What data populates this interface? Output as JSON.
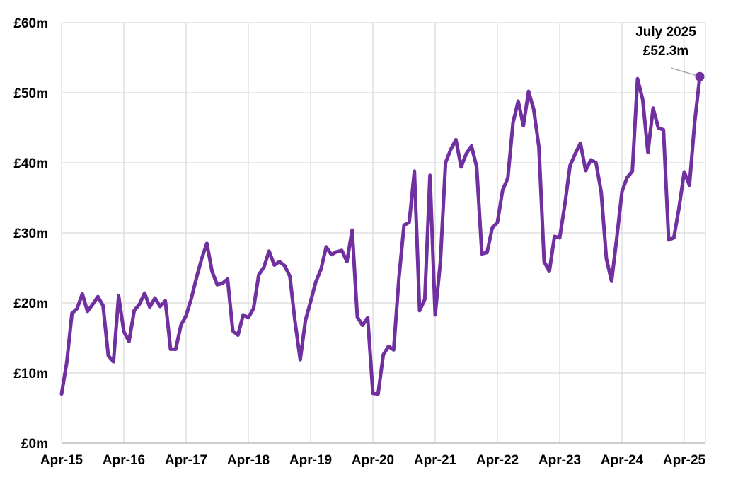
{
  "chart_data": {
    "type": "line",
    "title": "",
    "xlabel": "",
    "ylabel": "",
    "ylim": [
      0,
      60
    ],
    "y_ticks": [
      0,
      10,
      20,
      30,
      40,
      50,
      60
    ],
    "y_tick_labels": [
      "£0m",
      "£10m",
      "£20m",
      "£30m",
      "£40m",
      "£50m",
      "£60m"
    ],
    "x_tick_labels": [
      "Apr-15",
      "Apr-16",
      "Apr-17",
      "Apr-18",
      "Apr-19",
      "Apr-20",
      "Apr-21",
      "Apr-22",
      "Apr-23",
      "Apr-24",
      "Apr-25"
    ],
    "grid": true,
    "line_color": "#7030A0",
    "annotation": {
      "line1": "July 2025",
      "line2": "£52.3m",
      "month": "Jul-25",
      "value": 52.3
    },
    "series": [
      {
        "x": [
          "Apr-15",
          "May-15",
          "Jun-15",
          "Jul-15",
          "Aug-15",
          "Sep-15",
          "Oct-15",
          "Nov-15",
          "Dec-15",
          "Jan-16",
          "Feb-16",
          "Mar-16",
          "Apr-16",
          "May-16",
          "Jun-16",
          "Jul-16",
          "Aug-16",
          "Sep-16",
          "Oct-16",
          "Nov-16",
          "Dec-16",
          "Jan-17",
          "Feb-17",
          "Mar-17",
          "Apr-17",
          "May-17",
          "Jun-17",
          "Jul-17",
          "Aug-17",
          "Sep-17",
          "Oct-17",
          "Nov-17",
          "Dec-17",
          "Jan-18",
          "Feb-18",
          "Mar-18",
          "Apr-18",
          "May-18",
          "Jun-18",
          "Jul-18",
          "Aug-18",
          "Sep-18",
          "Oct-18",
          "Nov-18",
          "Dec-18",
          "Jan-19",
          "Feb-19",
          "Mar-19",
          "Apr-19",
          "May-19",
          "Jun-19",
          "Jul-19",
          "Aug-19",
          "Sep-19",
          "Oct-19",
          "Nov-19",
          "Dec-19",
          "Jan-20",
          "Feb-20",
          "Mar-20",
          "Apr-20",
          "May-20",
          "Jun-20",
          "Jul-20",
          "Aug-20",
          "Sep-20",
          "Oct-20",
          "Nov-20",
          "Dec-20",
          "Jan-21",
          "Feb-21",
          "Mar-21",
          "Apr-21",
          "May-21",
          "Jun-21",
          "Jul-21",
          "Aug-21",
          "Sep-21",
          "Oct-21",
          "Nov-21",
          "Dec-21",
          "Jan-22",
          "Feb-22",
          "Mar-22",
          "Apr-22",
          "May-22",
          "Jun-22",
          "Jul-22",
          "Aug-22",
          "Sep-22",
          "Oct-22",
          "Nov-22",
          "Dec-22",
          "Jan-23",
          "Feb-23",
          "Mar-23",
          "Apr-23",
          "May-23",
          "Jun-23",
          "Jul-23",
          "Aug-23",
          "Sep-23",
          "Oct-23",
          "Nov-23",
          "Dec-23",
          "Jan-24",
          "Feb-24",
          "Mar-24",
          "Apr-24",
          "May-24",
          "Jun-24",
          "Jul-24",
          "Aug-24",
          "Sep-24",
          "Oct-24",
          "Nov-24",
          "Dec-24",
          "Jan-25",
          "Feb-25",
          "Mar-25",
          "Apr-25",
          "May-25",
          "Jun-25",
          "Jul-25"
        ],
        "values": [
          7.0,
          11.5,
          18.5,
          19.2,
          21.3,
          18.8,
          19.8,
          20.9,
          19.6,
          12.5,
          11.6,
          21.0,
          15.9,
          14.5,
          18.9,
          19.8,
          21.4,
          19.4,
          20.7,
          19.5,
          20.3,
          13.4,
          13.4,
          16.8,
          18.2,
          20.6,
          23.6,
          26.3,
          28.5,
          24.5,
          22.6,
          22.8,
          23.4,
          16.0,
          15.4,
          18.3,
          17.9,
          19.2,
          24.0,
          25.1,
          27.4,
          25.4,
          25.9,
          25.3,
          23.8,
          17.3,
          11.9,
          17.5,
          20.2,
          23.0,
          24.8,
          28.0,
          26.9,
          27.3,
          27.5,
          25.9,
          30.4,
          18.0,
          16.8,
          17.9,
          7.1,
          7.0,
          12.6,
          13.8,
          13.3,
          23.4,
          31.1,
          31.5,
          38.8,
          18.9,
          20.5,
          38.2,
          18.3,
          25.8,
          40.0,
          41.9,
          43.3,
          39.4,
          41.3,
          42.4,
          39.4,
          27.0,
          27.2,
          30.7,
          31.5,
          36.1,
          37.8,
          45.7,
          48.8,
          45.3,
          50.2,
          47.6,
          42.2,
          25.9,
          24.5,
          29.5,
          29.3,
          34.1,
          39.6,
          41.3,
          42.8,
          38.9,
          40.4,
          40.0,
          35.8,
          26.3,
          23.1,
          29.3,
          35.9,
          37.9,
          38.8,
          52.0,
          49.0,
          41.5,
          47.8,
          45.0,
          44.7,
          29.0,
          29.3,
          33.6,
          38.7,
          36.8,
          45.7,
          52.3
        ]
      }
    ]
  }
}
